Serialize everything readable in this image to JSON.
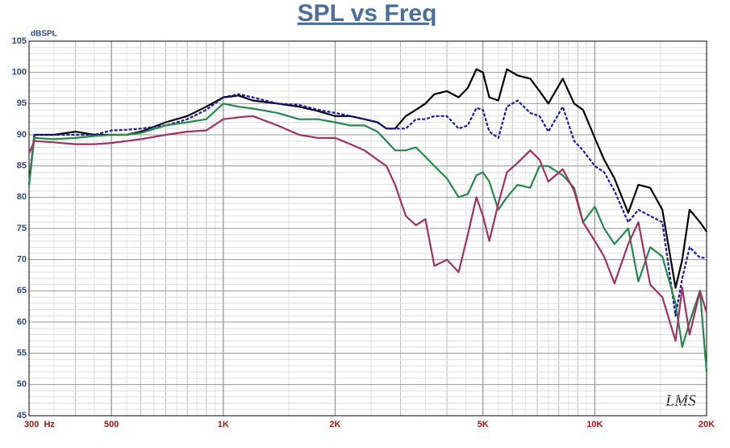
{
  "chart_data": {
    "type": "line",
    "title": "SPL vs Freq",
    "y_label": "dBSPL",
    "logo": "LMS",
    "x_log": true,
    "grid": true,
    "x": [
      300,
      310,
      350,
      400,
      450,
      500,
      550,
      600,
      700,
      800,
      900,
      1000,
      1100,
      1200,
      1400,
      1600,
      1800,
      2000,
      2200,
      2400,
      2600,
      2750,
      2900,
      3100,
      3300,
      3500,
      3700,
      4000,
      4300,
      4550,
      4800,
      5000,
      5200,
      5500,
      5800,
      6200,
      6700,
      7100,
      7500,
      8200,
      8800,
      9300,
      10000,
      10600,
      11300,
      12300,
      13100,
      14100,
      15200,
      16500,
      17200,
      18000,
      19200,
      20000
    ],
    "series": [
      {
        "color": "#000000",
        "dashed": false,
        "values": [
          82,
          90,
          90,
          90.5,
          90,
          90,
          90,
          90.5,
          92,
          93,
          94.5,
          96,
          96.3,
          95.5,
          95,
          94.5,
          93.8,
          93,
          93,
          92.5,
          92,
          91,
          91,
          93,
          94,
          95,
          96.5,
          97,
          96,
          97.5,
          100.5,
          100,
          96,
          95.5,
          100.5,
          99.5,
          99,
          97,
          95,
          99,
          95,
          94,
          89.5,
          86,
          83,
          77.5,
          82,
          81.5,
          78,
          65.5,
          70,
          78,
          76,
          74.5
        ]
      },
      {
        "color": "#1a1aa8",
        "dashed": true,
        "values": [
          82,
          90,
          90,
          90,
          90,
          90.7,
          90.8,
          91,
          91.5,
          92.5,
          94,
          96,
          96.5,
          96,
          95,
          94.8,
          94,
          93.5,
          93,
          92.5,
          92,
          91,
          91,
          91,
          92.5,
          92.5,
          93,
          93,
          91,
          91.5,
          94.3,
          94,
          90.5,
          89.5,
          94.5,
          95.5,
          93.5,
          93,
          90.5,
          94.5,
          89,
          87.5,
          85,
          84,
          81,
          76,
          78,
          77,
          76,
          61,
          67,
          72,
          70.3,
          70.3
        ]
      },
      {
        "color": "#23894c",
        "dashed": false,
        "values": [
          82,
          89.5,
          89.3,
          89.5,
          89.8,
          90,
          90,
          90.3,
          91.5,
          92,
          92.5,
          95,
          94.5,
          94.2,
          93.5,
          92.5,
          92.5,
          92,
          91.5,
          91.5,
          90.5,
          89,
          87.5,
          87.5,
          88,
          86.5,
          85,
          83,
          80,
          80.5,
          83.5,
          84,
          82.5,
          78,
          80,
          82,
          81.5,
          85,
          85,
          83.5,
          81.5,
          76,
          78.5,
          75,
          72.5,
          75,
          66.5,
          72,
          70.5,
          63,
          56,
          60,
          65,
          52
        ]
      },
      {
        "color": "#a3315e",
        "dashed": false,
        "values": [
          87,
          89,
          88.8,
          88.5,
          88.5,
          88.7,
          89,
          89.3,
          90,
          90.5,
          90.7,
          92.5,
          92.8,
          93,
          91.5,
          90,
          89.5,
          89.5,
          88.5,
          87.5,
          86,
          85,
          82,
          77,
          75.5,
          76.5,
          69,
          70,
          68,
          74,
          80,
          77,
          73,
          79,
          84,
          85.5,
          87.5,
          86,
          82.5,
          84.5,
          81,
          76,
          73,
          70.5,
          66.2,
          72.5,
          76,
          66,
          64,
          57,
          65.5,
          58,
          65,
          61.5
        ]
      }
    ],
    "xlim": [
      300,
      20000
    ],
    "xticks": [
      {
        "value": 300,
        "label": "300  Hz"
      },
      500,
      {
        "value": 1000,
        "label": "1K"
      },
      {
        "value": 2000,
        "label": "2K"
      },
      {
        "value": 5000,
        "label": "5K"
      },
      {
        "value": 10000,
        "label": "10K"
      },
      {
        "value": 20000,
        "label": "20K"
      }
    ],
    "ylim": [
      45,
      105
    ],
    "yticks": [
      45,
      50,
      55,
      60,
      65,
      70,
      75,
      80,
      85,
      90,
      95,
      100,
      105
    ]
  }
}
